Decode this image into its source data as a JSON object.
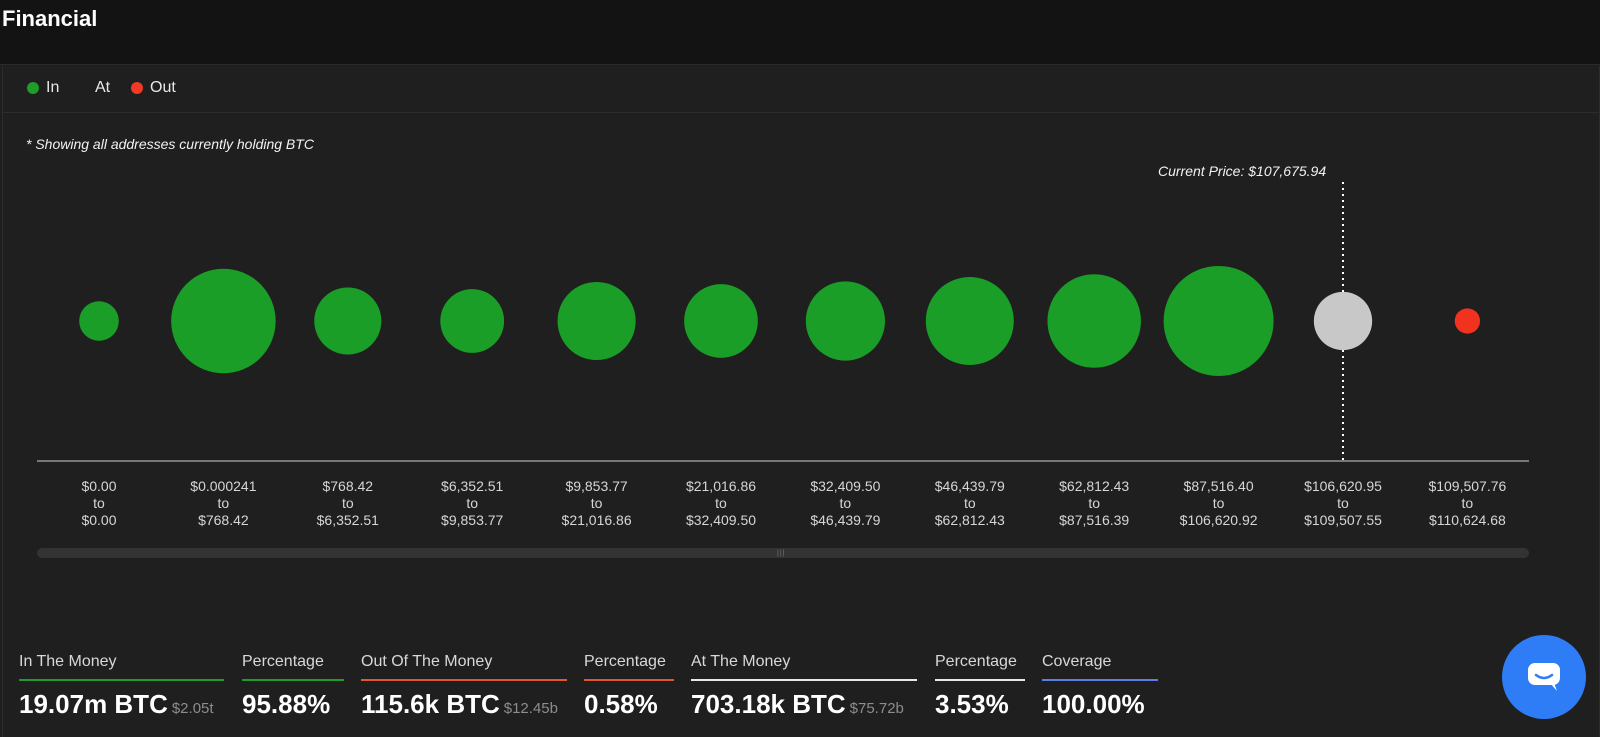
{
  "page_title": "Financial",
  "legend": [
    {
      "label": "In",
      "color": "#1f9c2a"
    },
    {
      "label": "At",
      "color": ""
    },
    {
      "label": "Out",
      "color": "#f03a26"
    }
  ],
  "note": "* Showing all addresses currently holding BTC",
  "current_price_label": "Current Price: $107,675.94",
  "colors": {
    "in": "#1a9e27",
    "at": "#c8c8c8",
    "out": "#f0321f",
    "chat": "#2f7df6"
  },
  "chart_data": {
    "type": "scatter",
    "categories": [
      "$0.00 to $0.00",
      "$0.000241 to $768.42",
      "$768.42 to $6,352.51",
      "$6,352.51 to $9,853.77",
      "$9,853.77 to $21,016.86",
      "$21,016.86 to $32,409.50",
      "$32,409.50 to $46,439.79",
      "$46,439.79 to $62,812.43",
      "$62,812.43 to $87,516.39",
      "$87,516.40 to $106,620.92",
      "$106,620.95 to $109,507.55",
      "$109,507.76 to $110,624.68"
    ],
    "buckets": [
      {
        "from": "$0.00",
        "to": "$0.00",
        "status": "in",
        "relative_size": 0.36
      },
      {
        "from": "$0.000241",
        "to": "$768.42",
        "status": "in",
        "relative_size": 0.95
      },
      {
        "from": "$768.42",
        "to": "$6,352.51",
        "status": "in",
        "relative_size": 0.61
      },
      {
        "from": "$6,352.51",
        "to": "$9,853.77",
        "status": "in",
        "relative_size": 0.58
      },
      {
        "from": "$9,853.77",
        "to": "$21,016.86",
        "status": "in",
        "relative_size": 0.71
      },
      {
        "from": "$21,016.86",
        "to": "$32,409.50",
        "status": "in",
        "relative_size": 0.67
      },
      {
        "from": "$32,409.50",
        "to": "$46,439.79",
        "status": "in",
        "relative_size": 0.72
      },
      {
        "from": "$46,439.79",
        "to": "$62,812.43",
        "status": "in",
        "relative_size": 0.8
      },
      {
        "from": "$62,812.43",
        "to": "$87,516.39",
        "status": "in",
        "relative_size": 0.85
      },
      {
        "from": "$87,516.40",
        "to": "$106,620.92",
        "status": "in",
        "relative_size": 1.0
      },
      {
        "from": "$106,620.95",
        "to": "$109,507.55",
        "status": "at",
        "relative_size": 0.53
      },
      {
        "from": "$109,507.76",
        "to": "$110,624.68",
        "status": "out",
        "relative_size": 0.23
      }
    ],
    "current_price_bucket_index": 10
  },
  "stats": [
    {
      "label": "In The Money",
      "value": "19.07m BTC",
      "sub": "$2.05t",
      "color": "#1f9c2a"
    },
    {
      "label": "Percentage",
      "value": "95.88%",
      "sub": "",
      "color": "#1f9c2a"
    },
    {
      "label": "Out Of The Money",
      "value": "115.6k BTC",
      "sub": "$12.45b",
      "color": "#e0562e"
    },
    {
      "label": "Percentage",
      "value": "0.58%",
      "sub": "",
      "color": "#e0562e"
    },
    {
      "label": "At The Money",
      "value": "703.18k BTC",
      "sub": "$75.72b",
      "color": "#e8e8e8"
    },
    {
      "label": "Percentage",
      "value": "3.53%",
      "sub": "",
      "color": "#e8e8e8"
    },
    {
      "label": "Coverage",
      "value": "100.00%",
      "sub": "",
      "color": "#5b7fe0"
    }
  ]
}
